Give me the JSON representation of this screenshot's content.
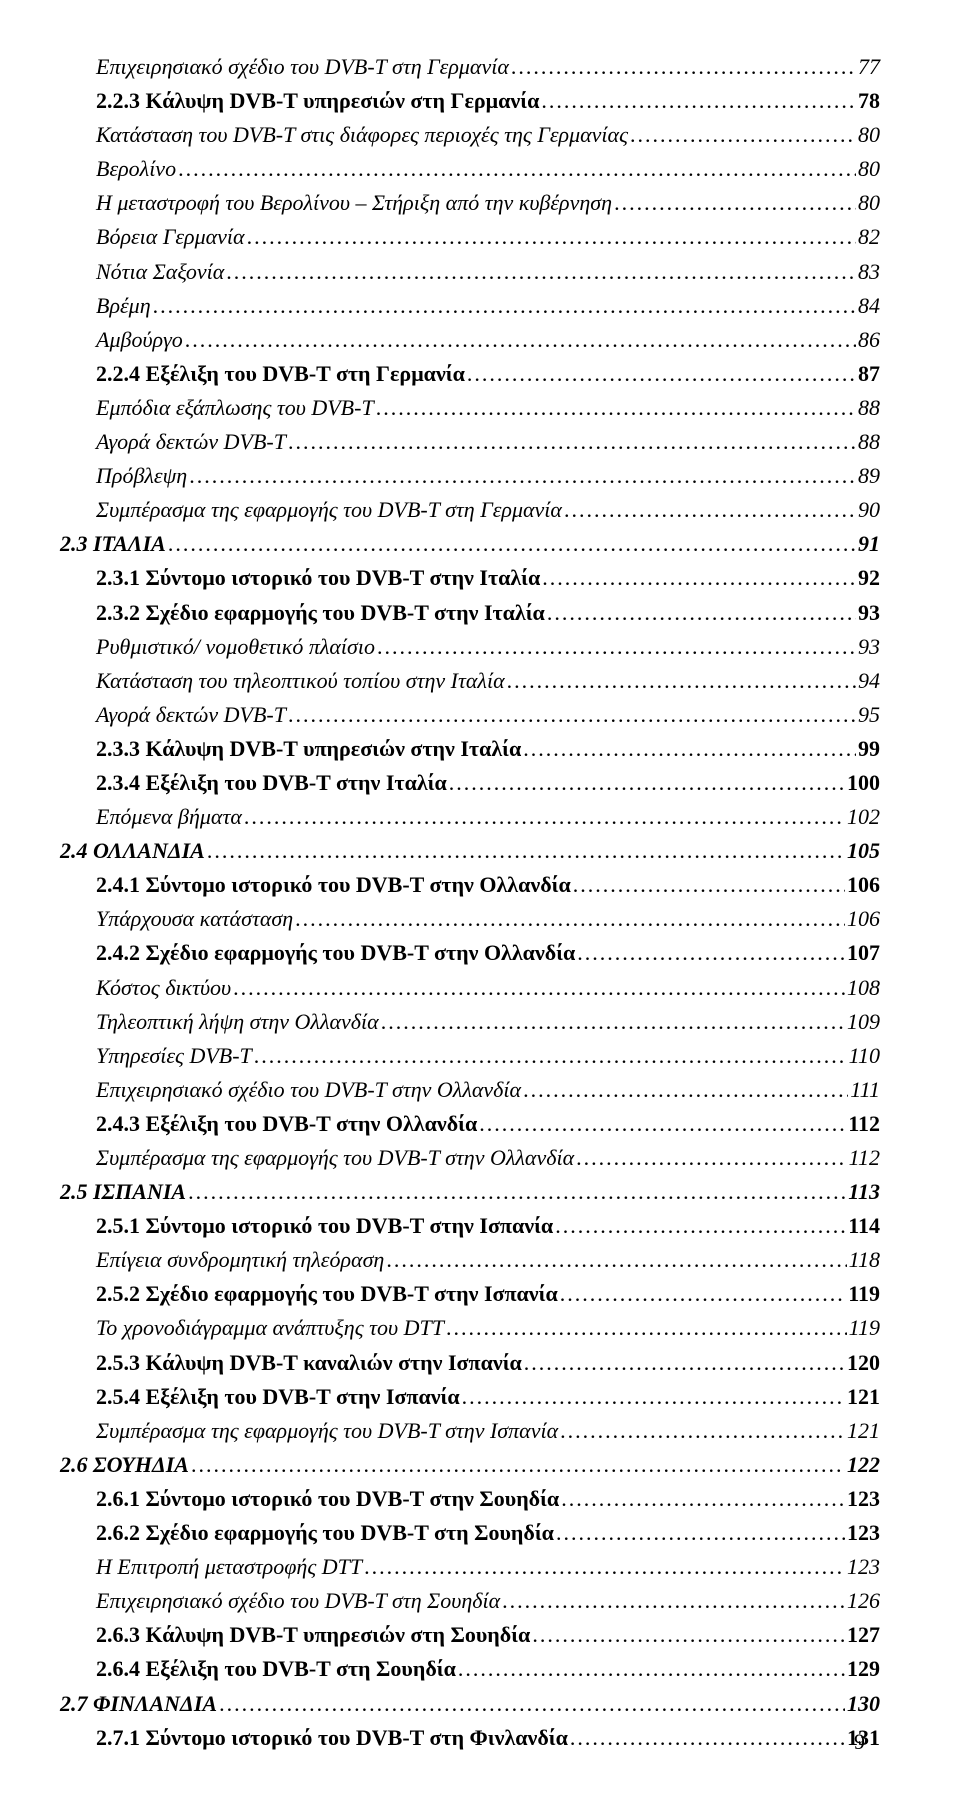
{
  "page_number": "9",
  "entries": [
    {
      "level": 3,
      "text": "Επιχειρησιακό σχέδιο του DVB-T στη Γερμανία",
      "page": "77"
    },
    {
      "level": 2,
      "text": "2.2.3 Κάλυψη DVB-T υπηρεσιών στη Γερμανία",
      "page": "78"
    },
    {
      "level": 3,
      "text": "Κατάσταση του DVB-T στις διάφορες περιοχές της Γερμανίας",
      "page": "80"
    },
    {
      "level": 3,
      "text": "Βερολίνο",
      "page": "80"
    },
    {
      "level": 3,
      "text": "Η μεταστροφή του Βερολίνου – Στήριξη από την κυβέρνηση",
      "page": "80"
    },
    {
      "level": 3,
      "text": "Βόρεια Γερμανία",
      "page": "82"
    },
    {
      "level": 3,
      "text": "Νότια Σαξονία",
      "page": "83"
    },
    {
      "level": 3,
      "text": "Βρέμη",
      "page": "84"
    },
    {
      "level": 3,
      "text": "Αμβούργο",
      "page": "86"
    },
    {
      "level": 2,
      "text": "2.2.4 Εξέλιξη του DVB-T στη Γερμανία",
      "page": "87"
    },
    {
      "level": 3,
      "text": "Εμπόδια εξάπλωσης του DVB-T",
      "page": "88"
    },
    {
      "level": 3,
      "text": "Αγορά δεκτών DVB-T",
      "page": "88"
    },
    {
      "level": 3,
      "text": "Πρόβλεψη",
      "page": "89"
    },
    {
      "level": 3,
      "text": "Συμπέρασμα της εφαρμογής του DVB-T στη Γερμανία",
      "page": "90"
    },
    {
      "level": 1,
      "text": "2.3  ΙΤΑΛΙΑ",
      "page": "91"
    },
    {
      "level": 2,
      "text": "2.3.1 Σύντομο ιστορικό του DVB-T στην Ιταλία",
      "page": "92"
    },
    {
      "level": 2,
      "text": "2.3.2 Σχέδιο εφαρμογής του DVB-T στην Ιταλία",
      "page": "93"
    },
    {
      "level": 3,
      "text": "Ρυθμιστικό/ νομοθετικό πλαίσιο",
      "page": "93"
    },
    {
      "level": 3,
      "text": "Κατάσταση του τηλεοπτικού τοπίου στην Ιταλία",
      "page": "94"
    },
    {
      "level": 3,
      "text": "Αγορά δεκτών DVB-T",
      "page": "95"
    },
    {
      "level": 2,
      "text": "2.3.3 Κάλυψη DVB-T υπηρεσιών στην Ιταλία",
      "page": "99"
    },
    {
      "level": 2,
      "text": "2.3.4 Εξέλιξη του DVB-T στην Ιταλία",
      "page": "100"
    },
    {
      "level": 3,
      "text": "Επόμενα βήματα",
      "page": "102"
    },
    {
      "level": 1,
      "text": "2.4  ΟΛΛΑΝΔΙΑ",
      "page": "105"
    },
    {
      "level": 2,
      "text": "2.4.1 Σύντομο ιστορικό του DVB-T στην Ολλανδία",
      "page": "106"
    },
    {
      "level": 3,
      "text": "Υπάρχουσα κατάσταση",
      "page": "106"
    },
    {
      "level": 2,
      "text": "2.4.2 Σχέδιο εφαρμογής του DVB-T στην Ολλανδία",
      "page": "107"
    },
    {
      "level": 3,
      "text": "Κόστος δικτύου",
      "page": "108"
    },
    {
      "level": 3,
      "text": "Τηλεοπτική λήψη στην Ολλανδία",
      "page": "109"
    },
    {
      "level": 3,
      "text": "Υπηρεσίες DVB-T",
      "page": "110"
    },
    {
      "level": 3,
      "text": "Επιχειρησιακό σχέδιο του DVB-T στην Ολλανδία",
      "page": "111"
    },
    {
      "level": 2,
      "text": "2.4.3 Εξέλιξη του DVB-T στην Ολλανδία",
      "page": "112"
    },
    {
      "level": 3,
      "text": "Συμπέρασμα της εφαρμογής του DVB-T στην Ολλανδία",
      "page": "112"
    },
    {
      "level": 1,
      "text": "2.5  ΙΣΠΑΝΙΑ",
      "page": "113"
    },
    {
      "level": 2,
      "text": "2.5.1 Σύντομο ιστορικό του DVB-T στην Ισπανία",
      "page": "114"
    },
    {
      "level": 3,
      "text": "Επίγεια συνδρομητική τηλεόραση",
      "page": "118"
    },
    {
      "level": 2,
      "text": "2.5.2 Σχέδιο εφαρμογής του DVB-T στην Ισπανία",
      "page": "119"
    },
    {
      "level": 3,
      "text": "Το χρονοδιάγραμμα ανάπτυξης του DTT",
      "page": "119"
    },
    {
      "level": 2,
      "text": "2.5.3 Κάλυψη DVB-T καναλιών στην Ισπανία",
      "page": "120"
    },
    {
      "level": 2,
      "text": "2.5.4 Εξέλιξη του DVB-T στην Ισπανία",
      "page": "121"
    },
    {
      "level": 3,
      "text": "Συμπέρασμα της εφαρμογής του DVB-T στην Ισπανία",
      "page": "121"
    },
    {
      "level": 1,
      "text": "2.6  ΣΟΥΗΔΙΑ",
      "page": "122"
    },
    {
      "level": 2,
      "text": "2.6.1 Σύντομο ιστορικό του DVB-T στην Σουηδία",
      "page": "123"
    },
    {
      "level": 2,
      "text": "2.6.2 Σχέδιο εφαρμογής του DVB-T στη Σουηδία",
      "page": "123"
    },
    {
      "level": 3,
      "text": "Η Επιτροπή μεταστροφής DTT",
      "page": "123"
    },
    {
      "level": 3,
      "text": "Επιχειρησιακό σχέδιο του DVB-T στη Σουηδία",
      "page": "126"
    },
    {
      "level": 2,
      "text": "2.6.3 Κάλυψη DVB-T υπηρεσιών στη Σουηδία",
      "page": "127"
    },
    {
      "level": 2,
      "text": "2.6.4 Εξέλιξη του DVB-T στη Σουηδία",
      "page": "129"
    },
    {
      "level": 1,
      "text": "2.7  ΦΙΝΛΑΝΔΙΑ",
      "page": "130"
    },
    {
      "level": 2,
      "text": "2.7.1 Σύντομο ιστορικό του DVB-T στη Φινλανδία",
      "page": "131"
    }
  ]
}
